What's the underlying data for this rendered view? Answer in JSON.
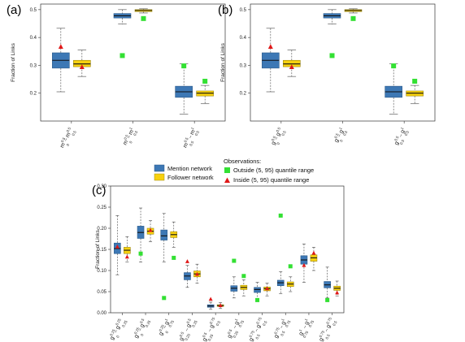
{
  "chart_data": [
    {
      "type": "box",
      "panel_label": "(a)",
      "ylabel": "Fraction of Links",
      "ylim": [
        0.1,
        0.52
      ],
      "yticks": [
        "0.2",
        "0.3",
        "0.4",
        "0.5"
      ],
      "categories": [
        {
          "base": "m",
          "sup": "0.5",
          "sub": "0",
          "base2": "m",
          "sup2": "0.5",
          "sub2": "0.5"
        },
        {
          "base": "m",
          "sup": "0.5",
          "sub": "0",
          "base2": "m",
          "sup2": "1",
          "sub2": "0.5"
        },
        {
          "base": "m",
          "sup": "0.5",
          "sub": "0.5",
          "base2": "m",
          "sup2": "1",
          "sub2": "0.5"
        }
      ],
      "series": [
        {
          "name": "Mention network",
          "boxes": [
            {
              "min": 0.205,
              "q1": 0.29,
              "median": 0.318,
              "q3": 0.345,
              "max": 0.433
            },
            {
              "min": 0.448,
              "q1": 0.47,
              "median": 0.478,
              "q3": 0.486,
              "max": 0.5
            },
            {
              "min": 0.125,
              "q1": 0.185,
              "median": 0.205,
              "q3": 0.225,
              "max": 0.305
            }
          ]
        },
        {
          "name": "Follower network",
          "boxes": [
            {
              "min": 0.26,
              "q1": 0.295,
              "median": 0.305,
              "q3": 0.318,
              "max": 0.355
            },
            {
              "min": 0.488,
              "q1": 0.493,
              "median": 0.497,
              "q3": 0.5,
              "max": 0.503
            },
            {
              "min": 0.162,
              "q1": 0.19,
              "median": 0.2,
              "q3": 0.208,
              "max": 0.228
            }
          ]
        }
      ],
      "observations_outside": [
        {
          "category": 1,
          "series": 0,
          "value": 0.335
        },
        {
          "category": 1,
          "series": 1,
          "value": 0.468
        },
        {
          "category": 2,
          "series": 0,
          "value": 0.298
        },
        {
          "category": 2,
          "series": 1,
          "value": 0.243
        }
      ],
      "observations_inside": [
        {
          "category": 0,
          "series": 0,
          "value": 0.368
        },
        {
          "category": 0,
          "series": 1,
          "value": 0.295
        }
      ]
    },
    {
      "type": "box",
      "panel_label": "(b)",
      "ylabel": "Fraction of Links",
      "ylim": [
        0.1,
        0.52
      ],
      "yticks": [
        "0.2",
        "0.3",
        "0.4",
        "0.5"
      ],
      "categories": [
        {
          "base": "g",
          "sup": "0.5",
          "sub": "0",
          "base2": "g",
          "sup2": "0.5",
          "sub2": "0.5"
        },
        {
          "base": "g",
          "sup": "0.5",
          "sub": "0",
          "base2": "g",
          "sup2": "1",
          "sub2": "0.5"
        },
        {
          "base": "g",
          "sup": "0.5",
          "sub": "0.5",
          "base2": "g",
          "sup2": "1",
          "sub2": "0.5"
        }
      ],
      "series": [
        {
          "name": "Mention network",
          "boxes": [
            {
              "min": 0.205,
              "q1": 0.29,
              "median": 0.318,
              "q3": 0.345,
              "max": 0.433
            },
            {
              "min": 0.448,
              "q1": 0.47,
              "median": 0.478,
              "q3": 0.486,
              "max": 0.5
            },
            {
              "min": 0.125,
              "q1": 0.185,
              "median": 0.205,
              "q3": 0.225,
              "max": 0.305
            }
          ]
        },
        {
          "name": "Follower network",
          "boxes": [
            {
              "min": 0.26,
              "q1": 0.295,
              "median": 0.305,
              "q3": 0.318,
              "max": 0.355
            },
            {
              "min": 0.488,
              "q1": 0.493,
              "median": 0.497,
              "q3": 0.5,
              "max": 0.503
            },
            {
              "min": 0.162,
              "q1": 0.19,
              "median": 0.2,
              "q3": 0.208,
              "max": 0.228
            }
          ]
        }
      ],
      "observations_outside": [
        {
          "category": 1,
          "series": 0,
          "value": 0.335
        },
        {
          "category": 1,
          "series": 1,
          "value": 0.468
        },
        {
          "category": 2,
          "series": 0,
          "value": 0.298
        },
        {
          "category": 2,
          "series": 1,
          "value": 0.243
        }
      ],
      "observations_inside": [
        {
          "category": 0,
          "series": 0,
          "value": 0.368
        },
        {
          "category": 0,
          "series": 1,
          "value": 0.295
        }
      ]
    },
    {
      "type": "box",
      "panel_label": "(c)",
      "ylabel": "Fraction of Links",
      "ylim": [
        0.0,
        0.3
      ],
      "yticks": [
        "0.00",
        "0.05",
        "0.10",
        "0.15",
        "0.20",
        "0.25",
        "0.30"
      ],
      "categories": [
        {
          "base": "g",
          "sup": "0.25",
          "sub": "0",
          "base2": "g",
          "sup2": "0.25",
          "sub2": "0.25"
        },
        {
          "base": "g",
          "sup": "0.25",
          "sub": "0",
          "base2": "g",
          "sup2": "0.5",
          "sub2": "0.25"
        },
        {
          "base": "g",
          "sup": "0.25",
          "sub": "0",
          "base2": "g",
          "sup2": "1",
          "sub2": "0.75"
        },
        {
          "base": "g",
          "sup": "0.5",
          "sub": "0.25",
          "base2": "g",
          "sup2": "0.5",
          "sub2": "0.25"
        },
        {
          "base": "g",
          "sup": "0.5",
          "sub": "0.25",
          "base2": "g",
          "sup2": "0.75",
          "sub2": "0.5"
        },
        {
          "base": "g",
          "sup": "0.5",
          "sub": "0.25",
          "base2": "g",
          "sup2": "1",
          "sub2": "0.75"
        },
        {
          "base": "g",
          "sup": "0.75",
          "sub": "0.5",
          "base2": "g",
          "sup2": "0.75",
          "sub2": "0.5"
        },
        {
          "base": "g",
          "sup": "0.75",
          "sub": "0.5",
          "base2": "g",
          "sup2": "1",
          "sub2": "0.75"
        },
        {
          "base": "g",
          "sup": "1",
          "sub": "0.75",
          "base2": "g",
          "sup2": "1",
          "sub2": "0.75"
        },
        {
          "base": "g",
          "sup": "0.75",
          "sub": "0.5",
          "base2": "g",
          "sup2": "0.75",
          "sub2": "0.5"
        }
      ],
      "series": [
        {
          "name": "Mention network",
          "boxes": [
            {
              "min": 0.09,
              "q1": 0.14,
              "median": 0.152,
              "q3": 0.165,
              "max": 0.23
            },
            {
              "min": 0.12,
              "q1": 0.176,
              "median": 0.19,
              "q3": 0.205,
              "max": 0.248
            },
            {
              "min": 0.12,
              "q1": 0.172,
              "median": 0.182,
              "q3": 0.196,
              "max": 0.235
            },
            {
              "min": 0.06,
              "q1": 0.078,
              "median": 0.087,
              "q3": 0.095,
              "max": 0.112
            },
            {
              "min": 0.008,
              "q1": 0.013,
              "median": 0.016,
              "q3": 0.019,
              "max": 0.025
            },
            {
              "min": 0.035,
              "q1": 0.051,
              "median": 0.058,
              "q3": 0.064,
              "max": 0.085
            },
            {
              "min": 0.03,
              "q1": 0.048,
              "median": 0.055,
              "q3": 0.06,
              "max": 0.072
            },
            {
              "min": 0.045,
              "q1": 0.064,
              "median": 0.071,
              "q3": 0.077,
              "max": 0.097
            },
            {
              "min": 0.072,
              "q1": 0.115,
              "median": 0.125,
              "q3": 0.135,
              "max": 0.163
            },
            {
              "min": 0.035,
              "q1": 0.059,
              "median": 0.066,
              "q3": 0.074,
              "max": 0.108
            }
          ]
        },
        {
          "name": "Follower network",
          "boxes": [
            {
              "min": 0.12,
              "q1": 0.14,
              "median": 0.148,
              "q3": 0.155,
              "max": 0.18
            },
            {
              "min": 0.168,
              "q1": 0.186,
              "median": 0.193,
              "q3": 0.2,
              "max": 0.218
            },
            {
              "min": 0.155,
              "q1": 0.178,
              "median": 0.185,
              "q3": 0.192,
              "max": 0.215
            },
            {
              "min": 0.07,
              "q1": 0.085,
              "median": 0.092,
              "q3": 0.099,
              "max": 0.115
            },
            {
              "min": 0.01,
              "q1": 0.015,
              "median": 0.017,
              "q3": 0.019,
              "max": 0.024
            },
            {
              "min": 0.04,
              "q1": 0.055,
              "median": 0.06,
              "q3": 0.065,
              "max": 0.078
            },
            {
              "min": 0.04,
              "q1": 0.052,
              "median": 0.057,
              "q3": 0.061,
              "max": 0.07
            },
            {
              "min": 0.05,
              "q1": 0.062,
              "median": 0.068,
              "q3": 0.073,
              "max": 0.085
            },
            {
              "min": 0.1,
              "q1": 0.122,
              "median": 0.13,
              "q3": 0.137,
              "max": 0.155
            },
            {
              "min": 0.04,
              "q1": 0.053,
              "median": 0.058,
              "q3": 0.063,
              "max": 0.075
            }
          ]
        }
      ],
      "observations_outside": [
        {
          "category": 1,
          "series": 0,
          "value": 0.14
        },
        {
          "category": 2,
          "series": 0,
          "value": 0.035
        },
        {
          "category": 2,
          "series": 1,
          "value": 0.13
        },
        {
          "category": 5,
          "series": 0,
          "value": 0.123
        },
        {
          "category": 5,
          "series": 1,
          "value": 0.087
        },
        {
          "category": 6,
          "series": 0,
          "value": 0.03
        },
        {
          "category": 7,
          "series": 0,
          "value": 0.23
        },
        {
          "category": 7,
          "series": 1,
          "value": 0.11
        },
        {
          "category": 9,
          "series": 0,
          "value": 0.03
        }
      ],
      "observations_inside": [
        {
          "category": 0,
          "series": 0,
          "value": 0.157
        },
        {
          "category": 0,
          "series": 1,
          "value": 0.133
        },
        {
          "category": 1,
          "series": 1,
          "value": 0.196
        },
        {
          "category": 3,
          "series": 0,
          "value": 0.122
        },
        {
          "category": 3,
          "series": 1,
          "value": 0.092
        },
        {
          "category": 4,
          "series": 0,
          "value": 0.033
        },
        {
          "category": 4,
          "series": 1,
          "value": 0.018
        },
        {
          "category": 6,
          "series": 1,
          "value": 0.058
        },
        {
          "category": 8,
          "series": 0,
          "value": 0.113
        },
        {
          "category": 8,
          "series": 1,
          "value": 0.142
        },
        {
          "category": 9,
          "series": 1,
          "value": 0.048
        }
      ]
    }
  ],
  "legend": {
    "title": "Observations:",
    "mention": "Mention network",
    "follower": "Follower network",
    "outside": "Outside (5, 95) quantile range",
    "inside": "Inside (5, 95) quantile range"
  },
  "colors": {
    "mention": "#3d78b5",
    "follower": "#f7d10f",
    "outside": "#33e033",
    "inside": "#e01818"
  }
}
